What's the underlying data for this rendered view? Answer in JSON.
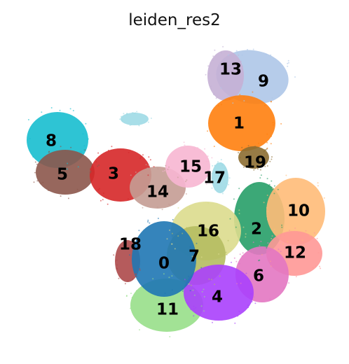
{
  "chart_data": {
    "type": "scatter",
    "title": "leiden_res2",
    "xlabel": "",
    "ylabel": "",
    "grid": false,
    "legend": "on data",
    "clusters": [
      {
        "label": "0",
        "color": "#1f77b4"
      },
      {
        "label": "1",
        "color": "#ff7f0e"
      },
      {
        "label": "2",
        "color": "#279e68"
      },
      {
        "label": "3",
        "color": "#d62728"
      },
      {
        "label": "4",
        "color": "#aa40fc"
      },
      {
        "label": "5",
        "color": "#8c564b"
      },
      {
        "label": "6",
        "color": "#e377c2"
      },
      {
        "label": "7",
        "color": "#b5bd61"
      },
      {
        "label": "8",
        "color": "#17becf"
      },
      {
        "label": "9",
        "color": "#aec7e8"
      },
      {
        "label": "10",
        "color": "#ffbb78"
      },
      {
        "label": "11",
        "color": "#98df8a"
      },
      {
        "label": "12",
        "color": "#ff9896"
      },
      {
        "label": "13",
        "color": "#c5b0d5"
      },
      {
        "label": "14",
        "color": "#c49c94"
      },
      {
        "label": "15",
        "color": "#f7b6d2"
      },
      {
        "label": "16",
        "color": "#dbdb8d"
      },
      {
        "label": "17",
        "color": "#9edae5"
      },
      {
        "label": "18",
        "color": "#ad494a"
      },
      {
        "label": "19",
        "color": "#8c6d31"
      }
    ]
  }
}
